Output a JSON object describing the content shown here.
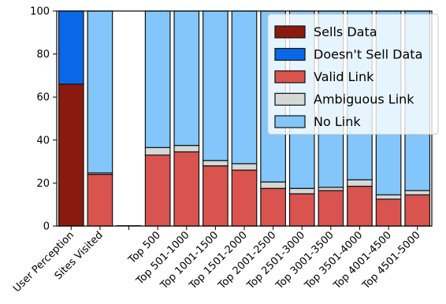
{
  "chart_data": {
    "type": "bar",
    "stacked": true,
    "categories": [
      "User Perception",
      "Sites Visited",
      "",
      "Top 500",
      "Top 501-1000",
      "Top 1001-1500",
      "Top 1501-2000",
      "Top 2001-2500",
      "Top 2501-3000",
      "Top 3001-3500",
      "Top 3501-4000",
      "Top 4001-4500",
      "Top 4501-5000"
    ],
    "series": [
      {
        "name": "Sells Data",
        "color": "#8b1a0e",
        "values": [
          66,
          0,
          0,
          0,
          0,
          0,
          0,
          0,
          0,
          0,
          0,
          0,
          0
        ]
      },
      {
        "name": "Doesn't Sell Data",
        "color": "#0a68e6",
        "values": [
          34,
          0,
          0,
          0,
          0,
          0,
          0,
          0,
          0,
          0,
          0,
          0,
          0
        ]
      },
      {
        "name": "Valid Link",
        "color": "#d9534f",
        "values": [
          0,
          24,
          0,
          33,
          34.5,
          28,
          26,
          17.5,
          15,
          16.5,
          18.5,
          12.5,
          14.5
        ]
      },
      {
        "name": "Ambiguous Link",
        "color": "#d3d9d4",
        "values": [
          0,
          0.7,
          0,
          3.5,
          3,
          2.5,
          3,
          3,
          2.5,
          1.5,
          3,
          2,
          2
        ]
      },
      {
        "name": "No Link",
        "color": "#82c6fb",
        "values": [
          0,
          75.3,
          0,
          63.5,
          62.5,
          69.5,
          71,
          79.5,
          82.5,
          82,
          78.5,
          85.5,
          83.5
        ]
      }
    ],
    "title": "",
    "xlabel": "",
    "ylabel": "",
    "ylim": [
      0,
      100
    ],
    "yticks": [
      0,
      20,
      40,
      60,
      80,
      100
    ],
    "grid": false,
    "legend": {
      "placement": "top-right"
    }
  }
}
